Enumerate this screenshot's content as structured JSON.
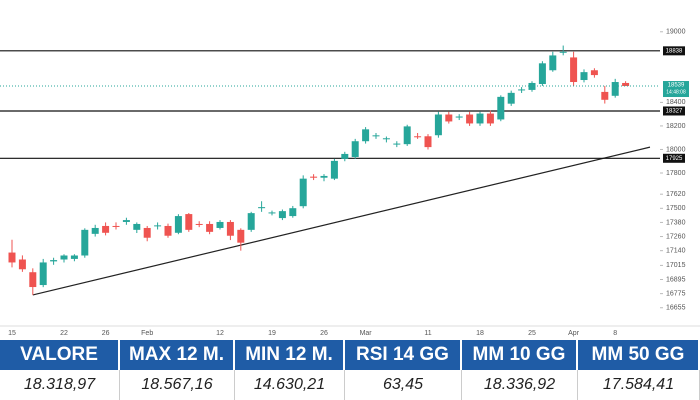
{
  "chart_data": {
    "type": "candlestick",
    "categories": [
      "15",
      null,
      null,
      null,
      null,
      "22",
      null,
      null,
      null,
      "26",
      null,
      null,
      null,
      "Feb",
      null,
      null,
      null,
      null,
      null,
      null,
      "12",
      null,
      null,
      null,
      null,
      "19",
      null,
      null,
      null,
      null,
      "26",
      null,
      null,
      null,
      "Mar",
      null,
      null,
      null,
      null,
      null,
      "11",
      null,
      null,
      null,
      null,
      "18",
      null,
      null,
      null,
      null,
      "25",
      null,
      null,
      null,
      "Apr",
      null,
      null,
      null,
      "8",
      null
    ],
    "open": [
      17124,
      17065,
      16957,
      16848,
      17049,
      17065,
      17070,
      17099,
      17283,
      17350,
      17350,
      17384,
      17317,
      17333,
      17350,
      17350,
      17292,
      17451,
      17367,
      17367,
      17333,
      17384,
      17317,
      17317,
      17501,
      17459,
      17417,
      17434,
      17518,
      17769,
      17760,
      17752,
      17920,
      17936,
      18070,
      18112,
      18087,
      18045,
      18045,
      18112,
      18112,
      18121,
      18297,
      18271,
      18297,
      18221,
      18305,
      18255,
      18389,
      18506,
      18506,
      18556,
      18673,
      18824,
      18782,
      18590,
      18673,
      18489,
      18456,
      18565
    ],
    "high": [
      17233,
      17100,
      16990,
      17070,
      17080,
      17110,
      17110,
      17330,
      17360,
      17380,
      17380,
      17420,
      17380,
      17350,
      17380,
      17370,
      17450,
      17460,
      17390,
      17390,
      17400,
      17400,
      17330,
      17470,
      17560,
      17480,
      17490,
      17520,
      17780,
      17790,
      17790,
      17920,
      17980,
      18090,
      18190,
      18140,
      18110,
      18070,
      18210,
      18140,
      18130,
      18320,
      18320,
      18300,
      18320,
      18320,
      18330,
      18460,
      18500,
      18530,
      18580,
      18750,
      18830,
      18883,
      18830,
      18680,
      18690,
      18540,
      18600,
      18580
    ],
    "low": [
      16998,
      16960,
      16764,
      16830,
      17020,
      17040,
      17050,
      17080,
      17260,
      17270,
      17320,
      17360,
      17290,
      17220,
      17320,
      17250,
      17280,
      17300,
      17340,
      17280,
      17320,
      17230,
      17140,
      17300,
      17470,
      17440,
      17400,
      17420,
      17500,
      17740,
      17730,
      17740,
      17900,
      17920,
      18050,
      18090,
      18060,
      18020,
      18030,
      18090,
      18000,
      18100,
      18220,
      18250,
      18200,
      18200,
      18200,
      18240,
      18370,
      18480,
      18490,
      18540,
      18660,
      18800,
      18540,
      18570,
      18610,
      18390,
      18440,
      18539
    ],
    "close": [
      17040,
      16982,
      16831,
      17040,
      17060,
      17099,
      17099,
      17317,
      17333,
      17292,
      17345,
      17400,
      17367,
      17250,
      17355,
      17267,
      17434,
      17317,
      17360,
      17300,
      17384,
      17267,
      17208,
      17459,
      17510,
      17465,
      17476,
      17501,
      17752,
      17760,
      17775,
      17903,
      17962,
      18070,
      18171,
      18120,
      18095,
      18050,
      18196,
      18105,
      18020,
      18297,
      18238,
      18280,
      18221,
      18305,
      18221,
      18447,
      18481,
      18510,
      18565,
      18732,
      18799,
      18830,
      18573,
      18657,
      18632,
      18422,
      18573,
      18539
    ],
    "up_color": "#26a69a",
    "down_color": "#ef5350",
    "levels": [
      18838,
      18327,
      17925
    ],
    "trendline": [
      16764,
      18020
    ],
    "last_price": 18539,
    "last_time": "14:48:08",
    "ylim": [
      16500,
      19100
    ],
    "yticks": [
      19000,
      18400,
      18200,
      18000,
      17800,
      17620,
      17500,
      17380,
      17260,
      17140,
      17015,
      16895,
      16775,
      16655
    ]
  },
  "table": {
    "header": [
      "VALORE",
      "MAX 12 M.",
      "MIN 12 M.",
      "RSI 14 GG",
      "MM 10 GG",
      "MM 50 GG"
    ],
    "row": [
      "18.318,97",
      "18.567,16",
      "14.630,21",
      "63,45",
      "18.336,92",
      "17.584,41"
    ]
  }
}
